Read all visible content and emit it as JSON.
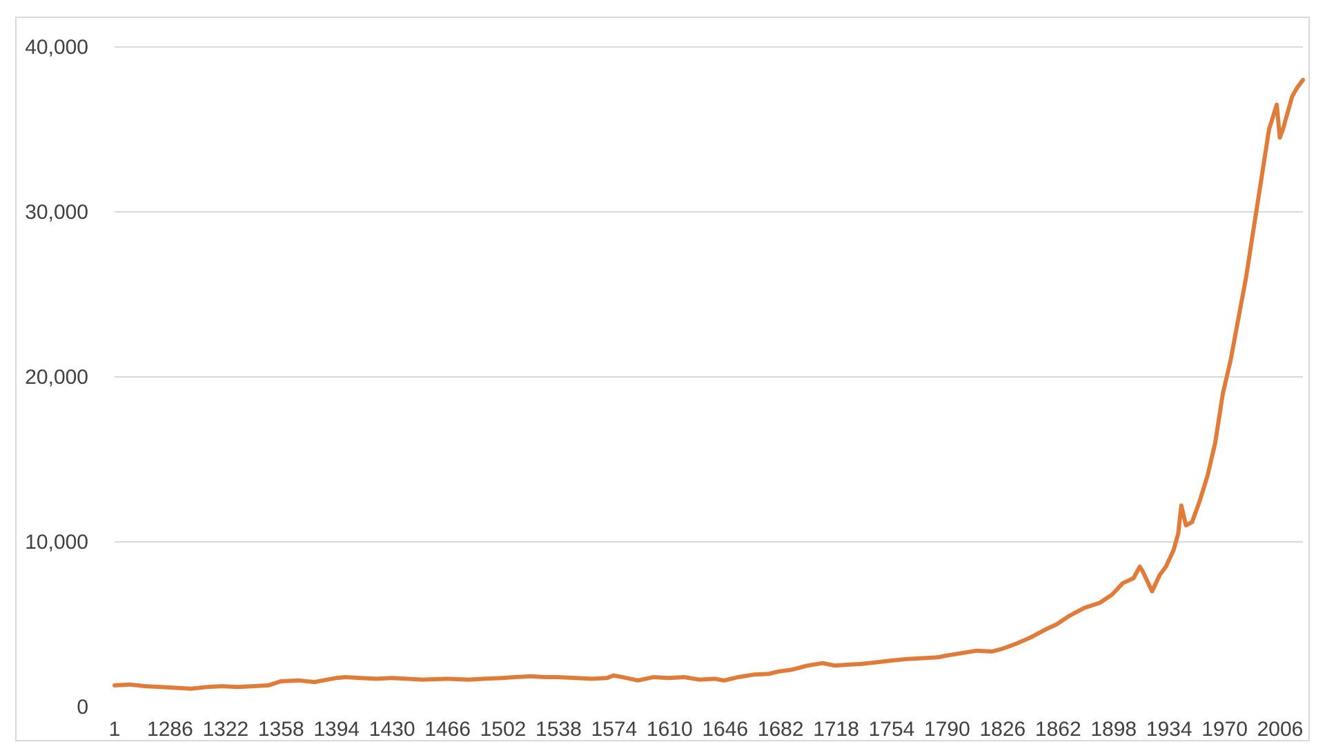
{
  "chart_data": {
    "type": "line",
    "title": "",
    "xlabel": "",
    "ylabel": "",
    "x_tick_labels": [
      "1",
      "1286",
      "1322",
      "1358",
      "1394",
      "1430",
      "1466",
      "1502",
      "1538",
      "1574",
      "1610",
      "1646",
      "1682",
      "1718",
      "1754",
      "1790",
      "1826",
      "1862",
      "1898",
      "1934",
      "1970",
      "2006"
    ],
    "y_ticks": [
      0,
      10000,
      20000,
      30000,
      40000
    ],
    "y_tick_labels": [
      "0",
      "10,000",
      "20,000",
      "30,000",
      "40,000"
    ],
    "ylim": [
      0,
      40000
    ],
    "xlim": [
      1250,
      2022
    ],
    "grid": true,
    "legend": "none",
    "line_color": "#E07B39",
    "grid_color": "#D9D9D9",
    "series": [
      {
        "x": [
          1250,
          1260,
          1270,
          1280,
          1290,
          1300,
          1310,
          1320,
          1330,
          1340,
          1350,
          1358,
          1370,
          1380,
          1394,
          1400,
          1410,
          1420,
          1430,
          1440,
          1450,
          1466,
          1480,
          1490,
          1502,
          1510,
          1520,
          1530,
          1538,
          1550,
          1560,
          1570,
          1574,
          1580,
          1590,
          1600,
          1610,
          1620,
          1630,
          1640,
          1646,
          1655,
          1665,
          1675,
          1682,
          1690,
          1700,
          1710,
          1718,
          1725,
          1735,
          1745,
          1754,
          1765,
          1775,
          1785,
          1790,
          1800,
          1810,
          1820,
          1826,
          1835,
          1845,
          1855,
          1862,
          1870,
          1880,
          1890,
          1898,
          1905,
          1912,
          1916,
          1918,
          1924,
          1929,
          1933,
          1938,
          1941,
          1943,
          1946,
          1950,
          1955,
          1960,
          1965,
          1970,
          1975,
          1980,
          1985,
          1990,
          1995,
          2000,
          2005,
          2007,
          2009,
          2012,
          2015,
          2018,
          2022
        ],
        "values": [
          1300,
          1350,
          1250,
          1200,
          1150,
          1100,
          1200,
          1250,
          1200,
          1250,
          1300,
          1550,
          1600,
          1500,
          1750,
          1800,
          1750,
          1700,
          1750,
          1700,
          1650,
          1700,
          1650,
          1700,
          1750,
          1800,
          1850,
          1800,
          1800,
          1750,
          1700,
          1750,
          1900,
          1800,
          1600,
          1800,
          1750,
          1800,
          1650,
          1700,
          1600,
          1800,
          1950,
          2000,
          2150,
          2250,
          2500,
          2650,
          2500,
          2550,
          2600,
          2700,
          2800,
          2900,
          2950,
          3000,
          3100,
          3250,
          3400,
          3350,
          3500,
          3800,
          4200,
          4700,
          5000,
          5500,
          6000,
          6300,
          6800,
          7500,
          7800,
          8500,
          8200,
          7000,
          8000,
          8500,
          9500,
          10500,
          12200,
          11000,
          11200,
          12500,
          14000,
          16000,
          19000,
          21000,
          23500,
          26000,
          29000,
          32000,
          35000,
          36500,
          34500,
          35000,
          36000,
          37000,
          37500,
          38000
        ]
      }
    ]
  }
}
